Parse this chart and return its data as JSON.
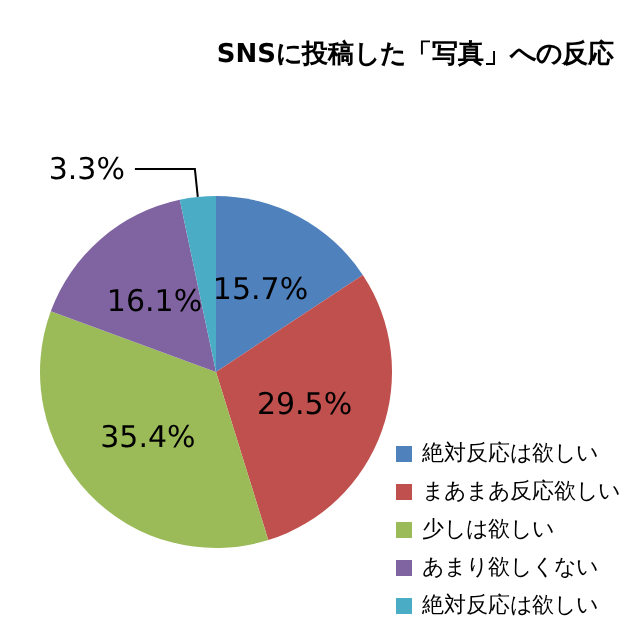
{
  "chart_data": {
    "type": "pie",
    "title": "SNSに投稿した「写真」への反応",
    "categories": [
      "絶対反応は欲しい",
      "まあまあ反応欲しい",
      "少しは欲しい",
      "あまり欲しくない",
      "絶対反応は欲しい"
    ],
    "values": [
      15.7,
      29.5,
      35.4,
      16.1,
      3.3
    ],
    "colors": [
      "#4f81bd",
      "#c0504d",
      "#9bbb59",
      "#8064a2",
      "#4bacc6"
    ],
    "value_labels": [
      "15.7%",
      "29.5%",
      "35.4%",
      "16.1%",
      "3.3%"
    ],
    "legend": "bottom right"
  }
}
